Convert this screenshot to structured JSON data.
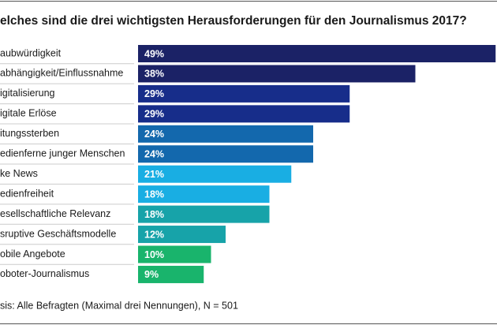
{
  "chart_data": {
    "type": "bar",
    "title": "elches sind die drei wichtigsten Herausforderungen für den Journalismus 2017?",
    "categories": [
      "aubwürdigkeit",
      "abhängigkeit/Einflussnahme",
      "igitalisierung",
      "igitale Erlöse",
      "itungssterben",
      "edienferne junger Menschen",
      "ke News",
      "edienfreiheit",
      "esellschaftliche Relevanz",
      "sruptive Geschäftsmodelle",
      "obile Angebote",
      "oboter-Journalismus"
    ],
    "values": [
      49,
      38,
      29,
      29,
      24,
      24,
      21,
      18,
      18,
      12,
      10,
      9
    ],
    "value_labels": [
      "49%",
      "38%",
      "29%",
      "29%",
      "24%",
      "24%",
      "21%",
      "18%",
      "18%",
      "12%",
      "10%",
      "9%"
    ],
    "colors": [
      "#1b2266",
      "#1b2266",
      "#172d8a",
      "#172d8a",
      "#1368ad",
      "#1368ad",
      "#19aee3",
      "#19aee3",
      "#17a3a9",
      "#17a3a9",
      "#19b46c",
      "#19b46c"
    ],
    "footnote": "sis: Alle Befragten (Maximal drei Nennungen), N = 501"
  }
}
